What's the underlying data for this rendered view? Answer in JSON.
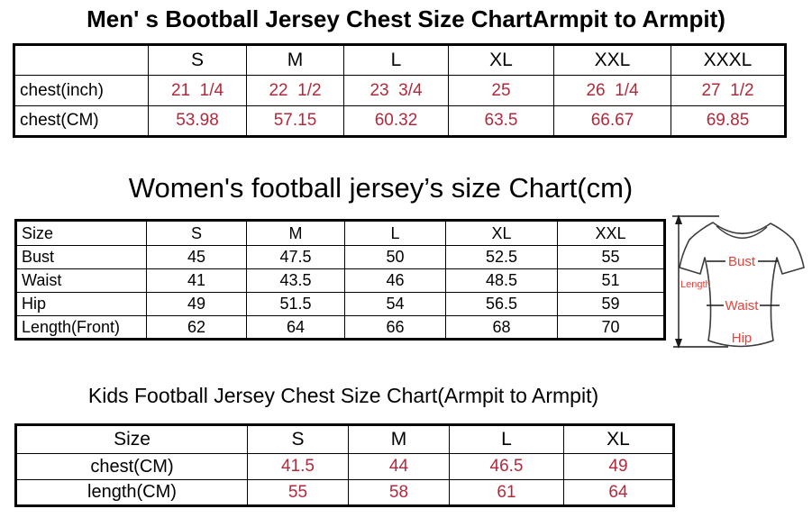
{
  "colors": {
    "value_red": "#b02a3c",
    "diagram_label_red": "#e8423c",
    "border_black": "#000000"
  },
  "men_table": {
    "title": "Men' s Bootball Jersey Chest Size ChartArmpit to Armpit)",
    "columns": [
      "",
      "S",
      "M",
      "L",
      "XL",
      "XXL",
      "XXXL"
    ],
    "rows": [
      {
        "label": "chest(inch)",
        "values": [
          "21  1/4",
          "22  1/2",
          "23  3/4",
          "25",
          "26  1/4",
          "27  1/2"
        ]
      },
      {
        "label": "chest(CM)",
        "values": [
          "53.98",
          "57.15",
          "60.32",
          "63.5",
          "66.67",
          "69.85"
        ]
      }
    ]
  },
  "women_table": {
    "title": "Women's football jersey’s size Chart(cm)",
    "columns": [
      "Size",
      "S",
      "M",
      "L",
      "XL",
      "XXL"
    ],
    "rows": [
      {
        "label": "Bust",
        "values": [
          "45",
          "47.5",
          "50",
          "52.5",
          "55"
        ]
      },
      {
        "label": "Waist",
        "values": [
          "41",
          "43.5",
          "46",
          "48.5",
          "51"
        ]
      },
      {
        "label": "Hip",
        "values": [
          "49",
          "51.5",
          "54",
          "56.5",
          "59"
        ]
      },
      {
        "label": "Length(Front)",
        "values": [
          "62",
          "64",
          "66",
          "68",
          "70"
        ]
      }
    ]
  },
  "kids_table": {
    "title": "Kids Football Jersey Chest Size Chart(Armpit to Armpit)",
    "columns": [
      "Size",
      "S",
      "M",
      "L",
      "XL"
    ],
    "rows": [
      {
        "label": "chest(CM)",
        "values": [
          "41.5",
          "44",
          "46.5",
          "49"
        ]
      },
      {
        "label": "length(CM)",
        "values": [
          "55",
          "58",
          "61",
          "64"
        ]
      }
    ]
  },
  "diagram": {
    "length_label": "Length",
    "bust_label": "Bust",
    "waist_label": "Waist",
    "hip_label": "Hip"
  },
  "chart_data": [
    {
      "type": "table",
      "title": "Men' s Bootball Jersey Chest Size ChartArmpit to Armpit)",
      "columns": [
        "",
        "S",
        "M",
        "L",
        "XL",
        "XXL",
        "XXXL"
      ],
      "rows": [
        [
          "chest(inch)",
          "21 1/4",
          "22 1/2",
          "23 3/4",
          "25",
          "26 1/4",
          "27 1/2"
        ],
        [
          "chest(CM)",
          "53.98",
          "57.15",
          "60.32",
          "63.5",
          "66.67",
          "69.85"
        ]
      ]
    },
    {
      "type": "table",
      "title": "Women's football jersey’s size Chart(cm)",
      "columns": [
        "Size",
        "S",
        "M",
        "L",
        "XL",
        "XXL"
      ],
      "rows": [
        [
          "Bust",
          "45",
          "47.5",
          "50",
          "52.5",
          "55"
        ],
        [
          "Waist",
          "41",
          "43.5",
          "46",
          "48.5",
          "51"
        ],
        [
          "Hip",
          "49",
          "51.5",
          "54",
          "56.5",
          "59"
        ],
        [
          "Length(Front)",
          "62",
          "64",
          "66",
          "68",
          "70"
        ]
      ]
    },
    {
      "type": "table",
      "title": "Kids Football Jersey Chest Size Chart(Armpit to Armpit)",
      "columns": [
        "Size",
        "S",
        "M",
        "L",
        "XL"
      ],
      "rows": [
        [
          "chest(CM)",
          "41.5",
          "44",
          "46.5",
          "49"
        ],
        [
          "length(CM)",
          "55",
          "58",
          "61",
          "64"
        ]
      ]
    }
  ]
}
